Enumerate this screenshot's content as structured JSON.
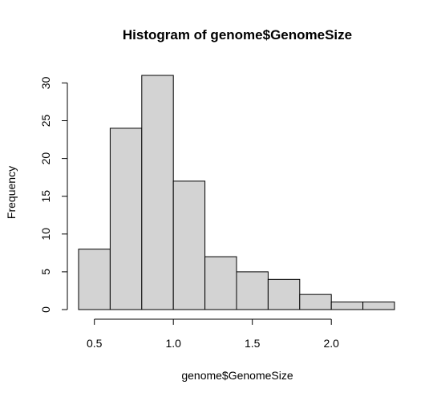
{
  "chart_data": {
    "type": "bar",
    "title": "Histogram of genome$GenomeSize",
    "xlabel": "genome$GenomeSize",
    "ylabel": "Frequency",
    "bins": [
      {
        "x0": 0.4,
        "x1": 0.6,
        "count": 8
      },
      {
        "x0": 0.6,
        "x1": 0.8,
        "count": 24
      },
      {
        "x0": 0.8,
        "x1": 1.0,
        "count": 31
      },
      {
        "x0": 1.0,
        "x1": 1.2,
        "count": 17
      },
      {
        "x0": 1.2,
        "x1": 1.4,
        "count": 7
      },
      {
        "x0": 1.4,
        "x1": 1.6,
        "count": 5
      },
      {
        "x0": 1.6,
        "x1": 1.8,
        "count": 4
      },
      {
        "x0": 1.8,
        "x1": 2.0,
        "count": 2
      },
      {
        "x0": 2.0,
        "x1": 2.2,
        "count": 1
      },
      {
        "x0": 2.2,
        "x1": 2.4,
        "count": 1
      }
    ],
    "x_ticks": [
      {
        "value": 0.5,
        "label": "0.5"
      },
      {
        "value": 1.0,
        "label": "1.0"
      },
      {
        "value": 1.5,
        "label": "1.5"
      },
      {
        "value": 2.0,
        "label": "2.0"
      }
    ],
    "y_ticks": [
      {
        "value": 0,
        "label": "0"
      },
      {
        "value": 5,
        "label": "5"
      },
      {
        "value": 10,
        "label": "10"
      },
      {
        "value": 15,
        "label": "15"
      },
      {
        "value": 20,
        "label": "20"
      },
      {
        "value": 25,
        "label": "25"
      },
      {
        "value": 30,
        "label": "30"
      }
    ],
    "xlim": [
      0.4,
      2.4
    ],
    "ylim": [
      0,
      31
    ],
    "grid": false,
    "colors": {
      "bar_fill": "#d3d3d3",
      "bar_stroke": "#000000"
    }
  }
}
